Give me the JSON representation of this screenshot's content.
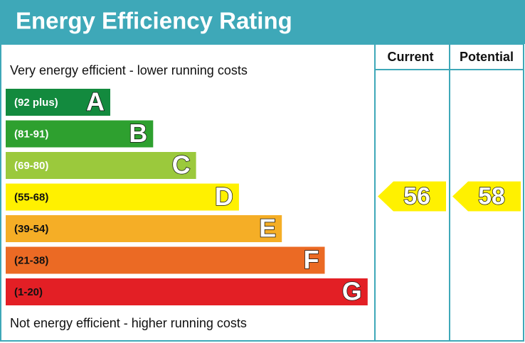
{
  "chart_data": {
    "type": "epc",
    "title": "Energy Efficiency Rating",
    "top_label": "Very energy efficient - lower running costs",
    "bottom_label": "Not energy efficient - higher running costs",
    "bands": [
      {
        "range": "(92 plus)",
        "letter": "A",
        "color": "#138a3e"
      },
      {
        "range": "(81-91)",
        "letter": "B",
        "color": "#2ea02f"
      },
      {
        "range": "(69-80)",
        "letter": "C",
        "color": "#9bc93c"
      },
      {
        "range": "(55-68)",
        "letter": "D",
        "color": "#fff100"
      },
      {
        "range": "(39-54)",
        "letter": "E",
        "color": "#f5ae26"
      },
      {
        "range": "(21-38)",
        "letter": "F",
        "color": "#eb6a24"
      },
      {
        "range": "(1-20)",
        "letter": "G",
        "color": "#e31f25"
      }
    ],
    "series": [
      {
        "name": "Current",
        "value": 56,
        "color": "#fff100"
      },
      {
        "name": "Potential",
        "value": 58,
        "color": "#fff100"
      }
    ]
  }
}
